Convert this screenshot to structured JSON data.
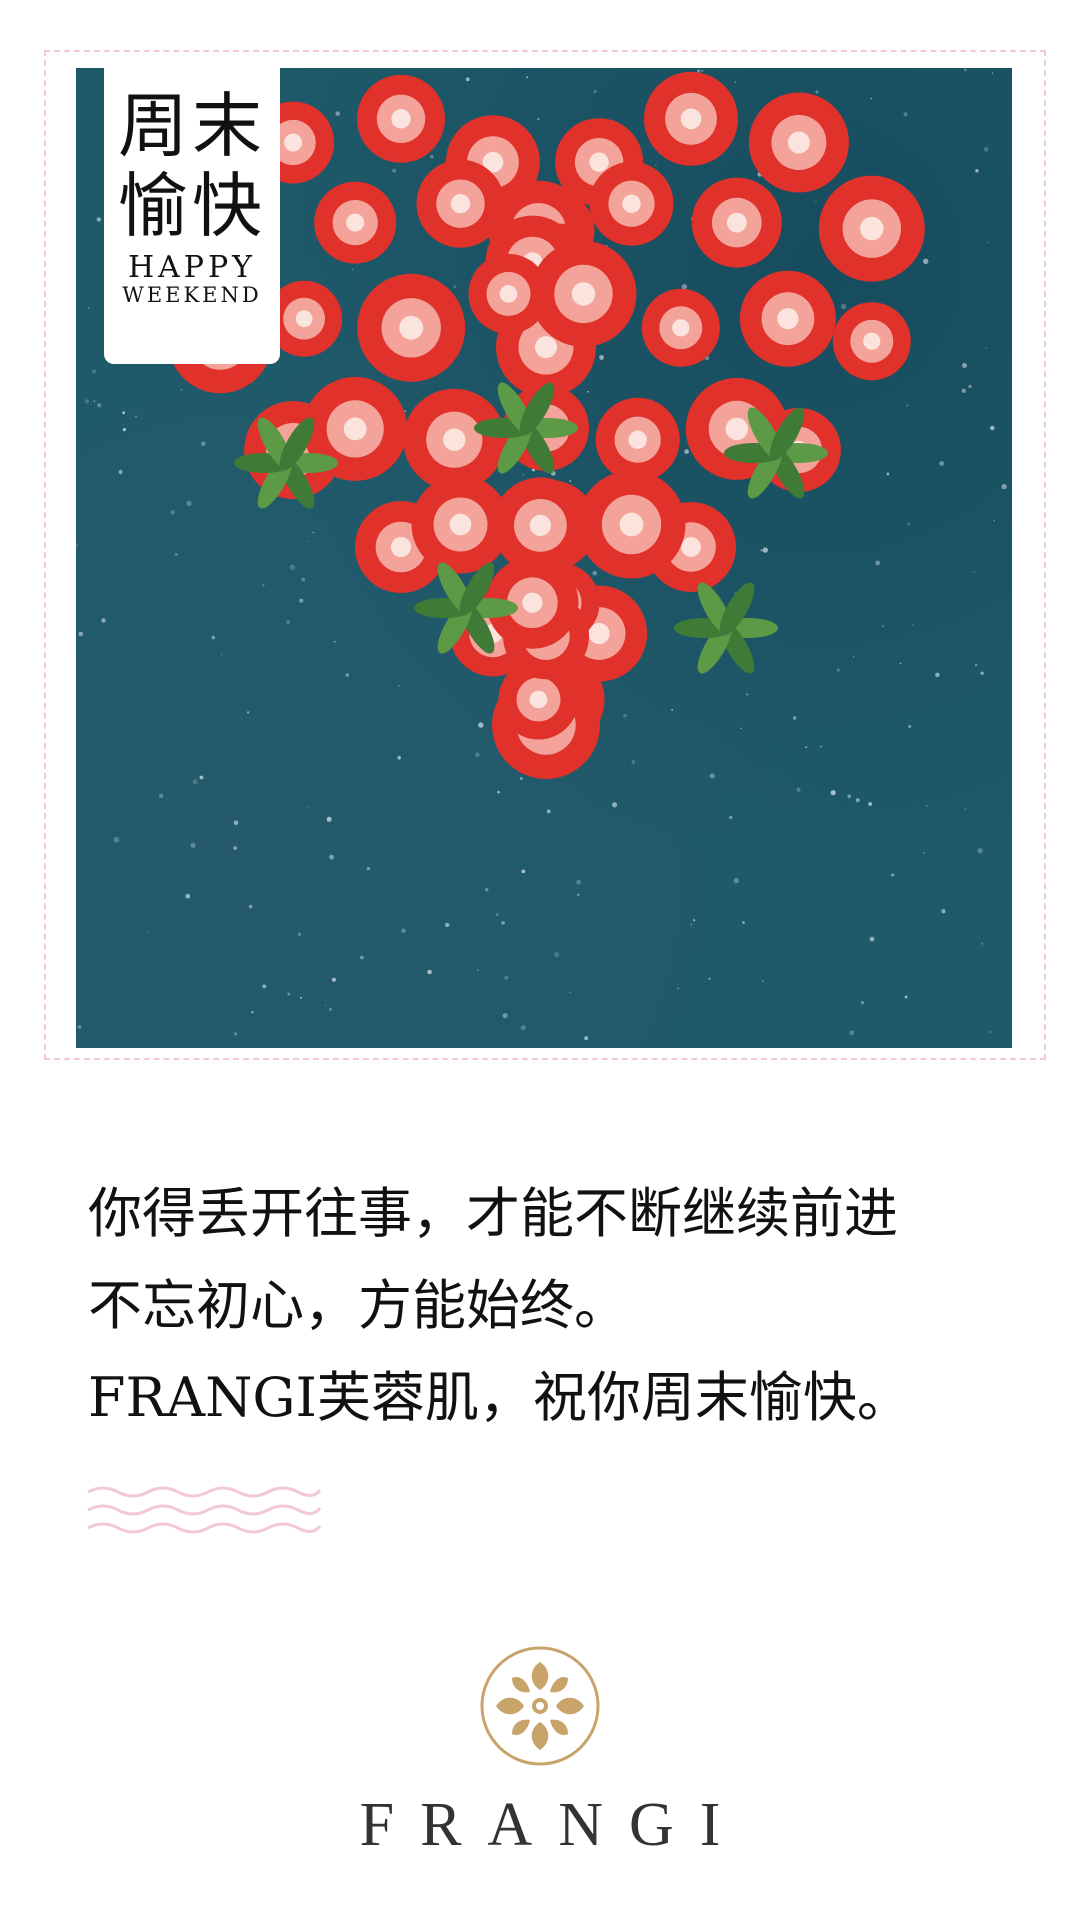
{
  "badge": {
    "cn_line1": "周末",
    "cn_line2": "愉快",
    "en_line1": "HAPPY",
    "en_line2": "WEEKEND"
  },
  "message": {
    "line1": "你得丢开往事，才能不断继续前进",
    "line2": "不忘初心，方能始终。",
    "line3": "FRANGI芙蓉肌，祝你周末愉快。"
  },
  "brand": {
    "name": "FRANGI"
  },
  "icons": {
    "logo": "frangi-emblem-icon",
    "decoration": "wavy-lines-icon"
  },
  "colors": {
    "frame_border": "#f2c9d4",
    "photo_background": "#1e5a6a",
    "strawberry": "#e0322a",
    "logo_gold": "#c8a46a",
    "waves": "#f2c9d4"
  }
}
